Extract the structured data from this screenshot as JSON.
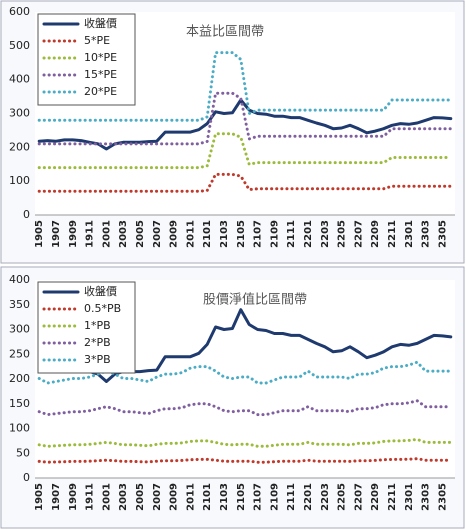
{
  "chart_data": [
    {
      "type": "line",
      "title": "本益比區間帶",
      "categories": [
        "1905",
        null,
        "1907",
        null,
        "1909",
        null,
        "1911",
        null,
        "2001",
        null,
        "2003",
        null,
        "2005",
        null,
        "2007",
        null,
        "2009",
        null,
        "2011",
        null,
        "2101",
        null,
        "2103",
        null,
        "2105",
        null,
        "2107",
        null,
        "2109",
        null,
        "2111",
        null,
        "2201",
        null,
        "2203",
        null,
        "2205",
        null,
        "2207",
        null,
        "2209",
        null,
        "2211",
        null,
        "2301",
        null,
        "2303",
        null,
        "2305",
        null
      ],
      "ylim": [
        0,
        600
      ],
      "yticks": [
        0,
        100,
        200,
        300,
        400,
        500,
        600
      ],
      "grid": false,
      "legend": "top-left",
      "series": [
        {
          "name": "收盤價",
          "color": "#1f3a6e",
          "values": [
            218,
            220,
            218,
            222,
            222,
            220,
            215,
            210,
            195,
            210,
            215,
            215,
            215,
            217,
            218,
            245,
            245,
            245,
            245,
            252,
            270,
            305,
            300,
            302,
            340,
            310,
            300,
            298,
            292,
            292,
            288,
            288,
            280,
            272,
            265,
            255,
            257,
            265,
            255,
            243,
            248,
            255,
            265,
            270,
            268,
            272,
            280,
            288,
            287,
            285
          ]
        },
        {
          "name": "5*PE",
          "color": "#c0392b",
          "values": [
            70,
            70,
            70,
            70,
            70,
            70,
            70,
            70,
            70,
            70,
            70,
            70,
            70,
            70,
            70,
            70,
            70,
            70,
            70,
            70,
            72.5,
            120,
            120,
            120,
            115,
            75,
            77.5,
            77.5,
            77.5,
            77.5,
            77.5,
            77.5,
            77.5,
            77.5,
            77.5,
            77.5,
            77.5,
            77.5,
            77.5,
            77.5,
            77.5,
            77.5,
            85,
            85,
            85,
            85,
            85,
            85,
            85,
            85
          ]
        },
        {
          "name": "10*PE",
          "color": "#9bbb3b",
          "values": [
            140,
            140,
            140,
            140,
            140,
            140,
            140,
            140,
            140,
            140,
            140,
            140,
            140,
            140,
            140,
            140,
            140,
            140,
            140,
            140,
            145,
            240,
            240,
            240,
            230,
            150,
            155,
            155,
            155,
            155,
            155,
            155,
            155,
            155,
            155,
            155,
            155,
            155,
            155,
            155,
            155,
            155,
            170,
            170,
            170,
            170,
            170,
            170,
            170,
            170
          ]
        },
        {
          "name": "15*PE",
          "color": "#7f5fa0",
          "values": [
            210,
            210,
            210,
            210,
            210,
            210,
            210,
            210,
            210,
            210,
            210,
            210,
            210,
            210,
            210,
            210,
            210,
            210,
            210,
            210,
            217.5,
            360,
            360,
            360,
            345,
            225,
            232.5,
            232.5,
            232.5,
            232.5,
            232.5,
            232.5,
            232.5,
            232.5,
            232.5,
            232.5,
            232.5,
            232.5,
            232.5,
            232.5,
            232.5,
            232.5,
            255,
            255,
            255,
            255,
            255,
            255,
            255,
            255
          ]
        },
        {
          "name": "20*PE",
          "color": "#4bacc6",
          "values": [
            280,
            280,
            280,
            280,
            280,
            280,
            280,
            280,
            280,
            280,
            280,
            280,
            280,
            280,
            280,
            280,
            280,
            280,
            280,
            280,
            290,
            480,
            480,
            480,
            460,
            300,
            310,
            310,
            310,
            310,
            310,
            310,
            310,
            310,
            310,
            310,
            310,
            310,
            310,
            310,
            310,
            310,
            340,
            340,
            340,
            340,
            340,
            340,
            340,
            340
          ]
        }
      ]
    },
    {
      "type": "line",
      "title": "股價淨值比區間帶",
      "categories": [
        "1905",
        null,
        "1907",
        null,
        "1909",
        null,
        "1911",
        null,
        "2001",
        null,
        "2003",
        null,
        "2005",
        null,
        "2007",
        null,
        "2009",
        null,
        "2011",
        null,
        "2101",
        null,
        "2103",
        null,
        "2105",
        null,
        "2107",
        null,
        "2109",
        null,
        "2111",
        null,
        "2201",
        null,
        "2203",
        null,
        "2205",
        null,
        "2207",
        null,
        "2209",
        null,
        "2211",
        null,
        "2301",
        null,
        "2303",
        null,
        "2305",
        null
      ],
      "ylim": [
        0,
        400
      ],
      "yticks": [
        0,
        50,
        100,
        150,
        200,
        250,
        300,
        350,
        400
      ],
      "grid": false,
      "legend": "top-left",
      "series": [
        {
          "name": "收盤價",
          "color": "#1f3a6e",
          "values": [
            218,
            220,
            218,
            222,
            222,
            220,
            215,
            210,
            195,
            210,
            215,
            215,
            215,
            217,
            218,
            245,
            245,
            245,
            245,
            252,
            270,
            305,
            300,
            302,
            340,
            310,
            300,
            298,
            292,
            292,
            288,
            288,
            280,
            272,
            265,
            255,
            257,
            265,
            255,
            243,
            248,
            255,
            265,
            270,
            268,
            272,
            280,
            288,
            287,
            285
          ]
        },
        {
          "name": "0.5*PB",
          "color": "#c0392b",
          "values": [
            33.5,
            32,
            32.5,
            33,
            33.5,
            33.5,
            34,
            35,
            36,
            35,
            33.5,
            33.5,
            33,
            32.5,
            34,
            35,
            35,
            35.5,
            37,
            37.5,
            37.5,
            36,
            34,
            33.5,
            34,
            34,
            32,
            32,
            33,
            34,
            34,
            34,
            36,
            34,
            34,
            34,
            34,
            33.5,
            35,
            35,
            35.5,
            37,
            37.5,
            37.5,
            38,
            39,
            36,
            36,
            36,
            36
          ]
        },
        {
          "name": "1*PB",
          "color": "#9bbb3b",
          "values": [
            67,
            64,
            65,
            66,
            67,
            67,
            68,
            70,
            72,
            70,
            67,
            67,
            66,
            65,
            68,
            70,
            70,
            71,
            74,
            75,
            75,
            72,
            68,
            67,
            68,
            68,
            64,
            64,
            66,
            68,
            68,
            68,
            72,
            68,
            68,
            68,
            68,
            67,
            70,
            70,
            71,
            74,
            75,
            75,
            76,
            78,
            72,
            72,
            72,
            72
          ]
        },
        {
          "name": "2*PB",
          "color": "#7f5fa0",
          "values": [
            134,
            128,
            130,
            132,
            134,
            134,
            136,
            140,
            144,
            140,
            134,
            134,
            132,
            130,
            136,
            140,
            140,
            142,
            148,
            150,
            150,
            144,
            136,
            134,
            136,
            136,
            128,
            128,
            132,
            136,
            136,
            136,
            144,
            136,
            136,
            136,
            136,
            134,
            140,
            140,
            142,
            148,
            150,
            150,
            152,
            156,
            144,
            144,
            144,
            144
          ]
        },
        {
          "name": "3*PB",
          "color": "#4bacc6",
          "values": [
            201,
            192,
            195,
            198,
            201,
            201,
            204,
            210,
            216,
            210,
            201,
            201,
            198,
            195,
            204,
            210,
            210,
            213,
            222,
            225,
            225,
            216,
            204,
            201,
            204,
            204,
            192,
            192,
            198,
            204,
            204,
            204,
            216,
            204,
            204,
            204,
            204,
            201,
            210,
            210,
            213,
            222,
            225,
            225,
            228,
            234,
            216,
            216,
            216,
            216
          ]
        }
      ]
    }
  ]
}
